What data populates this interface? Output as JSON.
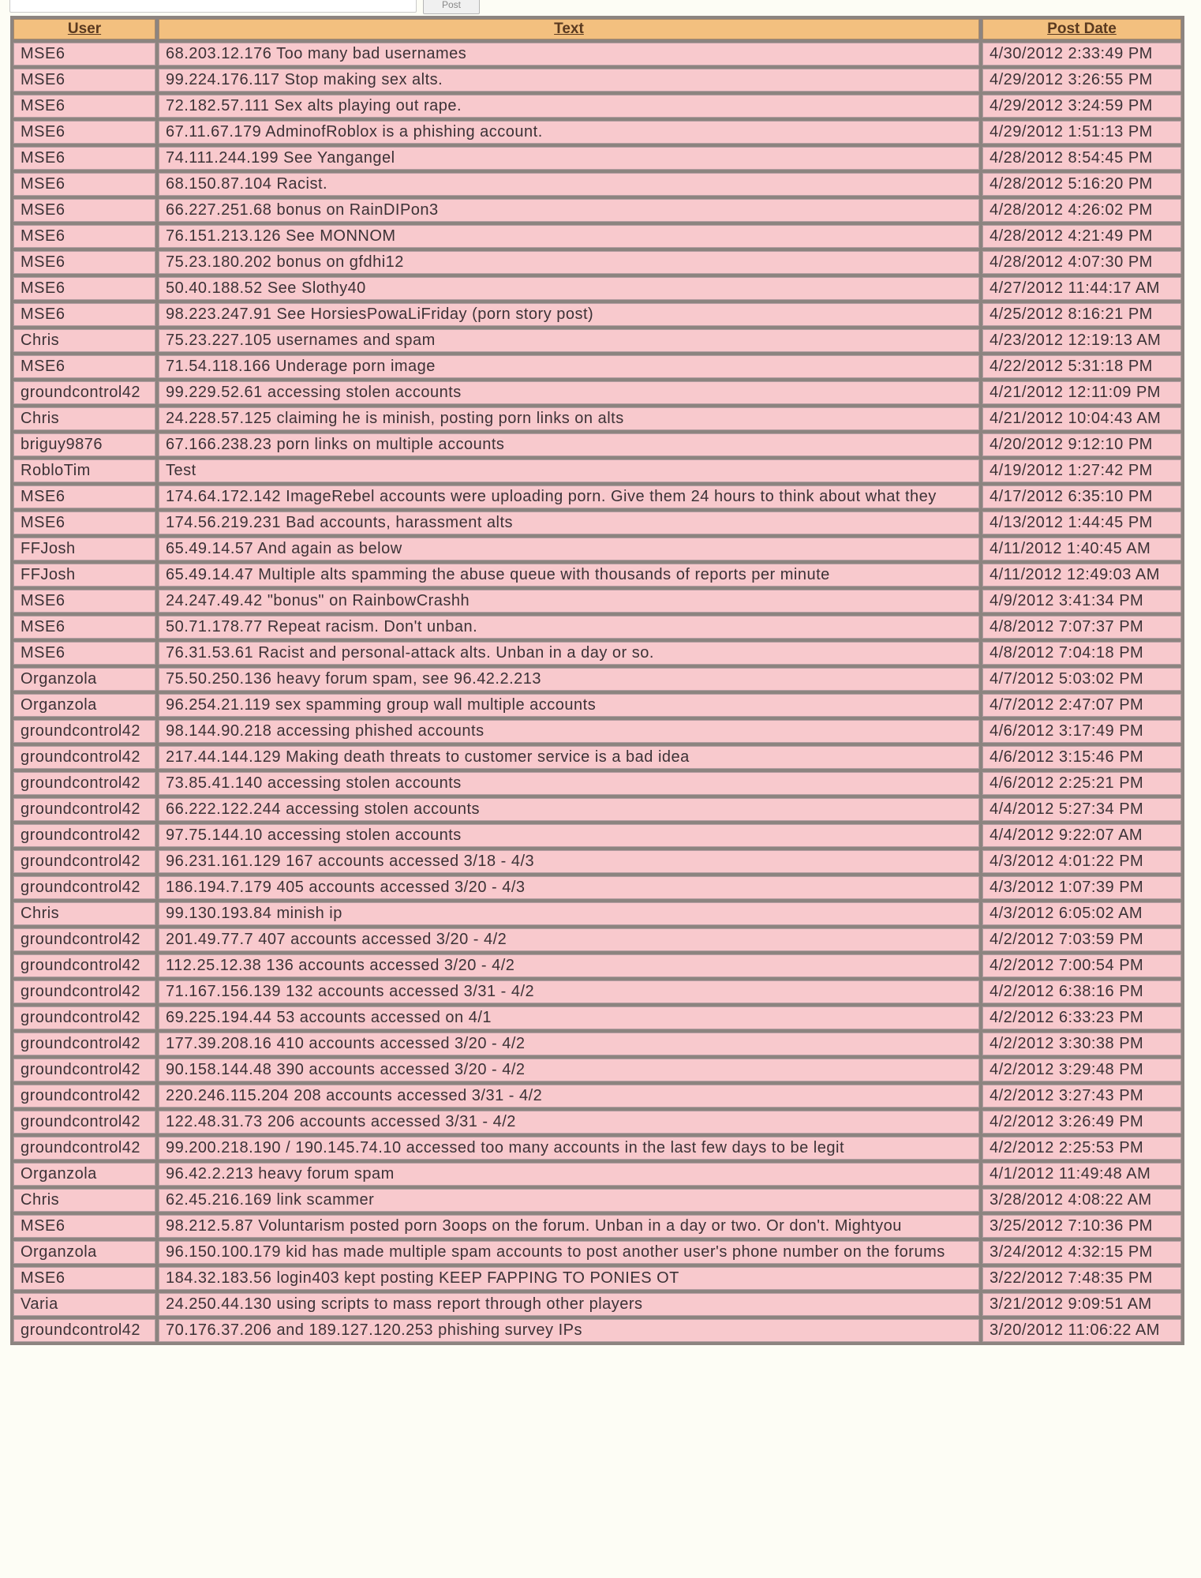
{
  "form": {
    "input_value": "",
    "post_label": "Post"
  },
  "table": {
    "headers": {
      "user": "User",
      "text": "Text",
      "date": "Post Date"
    },
    "rows": [
      {
        "user": "MSE6",
        "text": "68.203.12.176 Too many bad usernames",
        "date": "4/30/2012 2:33:49 PM"
      },
      {
        "user": "MSE6",
        "text": "99.224.176.117 Stop making sex alts.",
        "date": "4/29/2012 3:26:55 PM"
      },
      {
        "user": "MSE6",
        "text": "72.182.57.111 Sex alts playing out rape.",
        "date": "4/29/2012 3:24:59 PM"
      },
      {
        "user": "MSE6",
        "text": "67.11.67.179 AdminofRoblox is a phishing account.",
        "date": "4/29/2012 1:51:13 PM"
      },
      {
        "user": "MSE6",
        "text": "74.111.244.199 See Yangangel",
        "date": "4/28/2012 8:54:45 PM"
      },
      {
        "user": "MSE6",
        "text": "68.150.87.104 Racist.",
        "date": "4/28/2012 5:16:20 PM"
      },
      {
        "user": "MSE6",
        "text": "66.227.251.68 bonus on RainDIPon3",
        "date": "4/28/2012 4:26:02 PM"
      },
      {
        "user": "MSE6",
        "text": "76.151.213.126 See MONNOM",
        "date": "4/28/2012 4:21:49 PM"
      },
      {
        "user": "MSE6",
        "text": "75.23.180.202 bonus on gfdhi12",
        "date": "4/28/2012 4:07:30 PM"
      },
      {
        "user": "MSE6",
        "text": "50.40.188.52 See Slothy40",
        "date": "4/27/2012 11:44:17 AM"
      },
      {
        "user": "MSE6",
        "text": "98.223.247.91 See HorsiesPowaLiFriday (porn story post)",
        "date": "4/25/2012 8:16:21 PM"
      },
      {
        "user": "Chris",
        "text": "75.23.227.105 usernames and spam",
        "date": "4/23/2012 12:19:13 AM"
      },
      {
        "user": "MSE6",
        "text": "71.54.118.166 Underage porn image",
        "date": "4/22/2012 5:31:18 PM"
      },
      {
        "user": "groundcontrol42",
        "text": "99.229.52.61 accessing stolen accounts",
        "date": "4/21/2012 12:11:09 PM"
      },
      {
        "user": "Chris",
        "text": "24.228.57.125 claiming he is minish, posting porn links on alts",
        "date": "4/21/2012 10:04:43 AM"
      },
      {
        "user": "briguy9876",
        "text": "67.166.238.23 porn links on multiple accounts",
        "date": "4/20/2012 9:12:10 PM"
      },
      {
        "user": "RobloTim",
        "text": "Test",
        "date": "4/19/2012 1:27:42 PM"
      },
      {
        "user": "MSE6",
        "text": "174.64.172.142 ImageRebel accounts were uploading porn. Give them 24 hours to think about what they",
        "date": "4/17/2012 6:35:10 PM"
      },
      {
        "user": "MSE6",
        "text": "174.56.219.231 Bad accounts, harassment alts",
        "date": "4/13/2012 1:44:45 PM"
      },
      {
        "user": "FFJosh",
        "text": "65.49.14.57 And again as below",
        "date": "4/11/2012 1:40:45 AM"
      },
      {
        "user": "FFJosh",
        "text": "65.49.14.47 Multiple alts spamming the abuse queue with thousands of reports per minute",
        "date": "4/11/2012 12:49:03 AM"
      },
      {
        "user": "MSE6",
        "text": "24.247.49.42 \"bonus\" on RainbowCrashh",
        "date": "4/9/2012 3:41:34 PM"
      },
      {
        "user": "MSE6",
        "text": "50.71.178.77 Repeat racism. Don't unban.",
        "date": "4/8/2012 7:07:37 PM"
      },
      {
        "user": "MSE6",
        "text": "76.31.53.61 Racist and personal-attack alts. Unban in a day or so.",
        "date": "4/8/2012 7:04:18 PM"
      },
      {
        "user": "Organzola",
        "text": "75.50.250.136 heavy forum spam, see 96.42.2.213",
        "date": "4/7/2012 5:03:02 PM"
      },
      {
        "user": "Organzola",
        "text": "96.254.21.119 sex spamming group wall multiple accounts",
        "date": "4/7/2012 2:47:07 PM"
      },
      {
        "user": "groundcontrol42",
        "text": "98.144.90.218 accessing phished accounts",
        "date": "4/6/2012 3:17:49 PM"
      },
      {
        "user": "groundcontrol42",
        "text": "217.44.144.129 Making death threats to customer service is a bad idea",
        "date": "4/6/2012 3:15:46 PM"
      },
      {
        "user": "groundcontrol42",
        "text": "73.85.41.140 accessing stolen accounts",
        "date": "4/6/2012 2:25:21 PM"
      },
      {
        "user": "groundcontrol42",
        "text": "66.222.122.244 accessing stolen accounts",
        "date": "4/4/2012 5:27:34 PM"
      },
      {
        "user": "groundcontrol42",
        "text": "97.75.144.10 accessing stolen accounts",
        "date": "4/4/2012 9:22:07 AM"
      },
      {
        "user": "groundcontrol42",
        "text": "96.231.161.129 167 accounts accessed 3/18 - 4/3",
        "date": "4/3/2012 4:01:22 PM"
      },
      {
        "user": "groundcontrol42",
        "text": "186.194.7.179 405 accounts accessed 3/20 - 4/3",
        "date": "4/3/2012 1:07:39 PM"
      },
      {
        "user": "Chris",
        "text": "99.130.193.84 minish ip",
        "date": "4/3/2012 6:05:02 AM"
      },
      {
        "user": "groundcontrol42",
        "text": "201.49.77.7 407 accounts accessed 3/20 - 4/2",
        "date": "4/2/2012 7:03:59 PM"
      },
      {
        "user": "groundcontrol42",
        "text": "112.25.12.38 136 accounts accessed 3/20 - 4/2",
        "date": "4/2/2012 7:00:54 PM"
      },
      {
        "user": "groundcontrol42",
        "text": "71.167.156.139 132 accounts accessed 3/31 - 4/2",
        "date": "4/2/2012 6:38:16 PM"
      },
      {
        "user": "groundcontrol42",
        "text": "69.225.194.44 53 accounts accessed on 4/1",
        "date": "4/2/2012 6:33:23 PM"
      },
      {
        "user": "groundcontrol42",
        "text": "177.39.208.16 410 accounts accessed 3/20 - 4/2",
        "date": "4/2/2012 3:30:38 PM"
      },
      {
        "user": "groundcontrol42",
        "text": "90.158.144.48 390 accounts accessed 3/20 - 4/2",
        "date": "4/2/2012 3:29:48 PM"
      },
      {
        "user": "groundcontrol42",
        "text": "220.246.115.204 208 accounts accessed 3/31 - 4/2",
        "date": "4/2/2012 3:27:43 PM"
      },
      {
        "user": "groundcontrol42",
        "text": "122.48.31.73 206 accounts accessed 3/31 - 4/2",
        "date": "4/2/2012 3:26:49 PM"
      },
      {
        "user": "groundcontrol42",
        "text": "99.200.218.190 / 190.145.74.10 accessed too many accounts in the last few days to be legit",
        "date": "4/2/2012 2:25:53 PM"
      },
      {
        "user": "Organzola",
        "text": "96.42.2.213 heavy forum spam",
        "date": "4/1/2012 11:49:48 AM"
      },
      {
        "user": "Chris",
        "text": "62.45.216.169 link scammer",
        "date": "3/28/2012 4:08:22 AM"
      },
      {
        "user": "MSE6",
        "text": "98.212.5.87 Voluntarism posted porn 3oops on the forum. Unban in a day or two. Or don't. Mightyou",
        "date": "3/25/2012 7:10:36 PM"
      },
      {
        "user": "Organzola",
        "text": "96.150.100.179 kid has made multiple spam accounts to post another user's phone number on the forums",
        "date": "3/24/2012 4:32:15 PM"
      },
      {
        "user": "MSE6",
        "text": "184.32.183.56 login403 kept posting KEEP FAPPING TO PONIES OT",
        "date": "3/22/2012 7:48:35 PM"
      },
      {
        "user": "Varia",
        "text": "24.250.44.130 using scripts to mass report through other players",
        "date": "3/21/2012 9:09:51 AM"
      },
      {
        "user": "groundcontrol42",
        "text": "70.176.37.206 and 189.127.120.253 phishing survey IPs",
        "date": "3/20/2012 11:06:22 AM"
      }
    ]
  }
}
